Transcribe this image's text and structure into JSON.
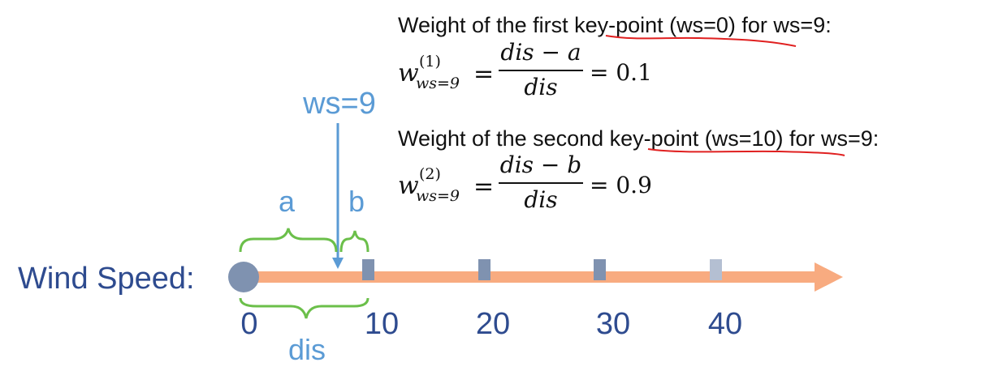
{
  "axis": {
    "label": "Wind Speed:",
    "ticks": [
      {
        "value": 0,
        "label": "0"
      },
      {
        "value": 10,
        "label": "10"
      },
      {
        "value": 20,
        "label": "20"
      },
      {
        "value": 30,
        "label": "30"
      },
      {
        "value": 40,
        "label": "40"
      }
    ],
    "origin_marker": "circle",
    "key_point_markers": [
      10,
      20,
      30,
      40
    ]
  },
  "current": {
    "label": "ws=9",
    "value": 9
  },
  "braces": {
    "a_label": "a",
    "b_label": "b",
    "dis_label": "dis"
  },
  "formulas": {
    "first": {
      "caption": "Weight of the first key-point (ws=0) for ws=9:",
      "w": "w",
      "superscript": "(1)",
      "subscript": "ws=9",
      "equals": "=",
      "numerator": "dis − a",
      "denominator": "dis",
      "result": "= 0.1"
    },
    "second": {
      "caption": "Weight of the second key-point (ws=10) for ws=9:",
      "w": "w",
      "superscript": "(2)",
      "subscript": "ws=9",
      "equals": "=",
      "numerator": "dis − b",
      "denominator": "dis",
      "result": "= 0.9"
    }
  },
  "colors": {
    "axis_arrow": "#f8ab80",
    "marker": "#7f92b0",
    "marker_faded": "#b4bfd2",
    "axis_text": "#2e4b8f",
    "accent_blue": "#5b9bd5",
    "brace_green": "#6bbf4a",
    "underline_red": "#e02020",
    "formula_text": "#111111"
  }
}
